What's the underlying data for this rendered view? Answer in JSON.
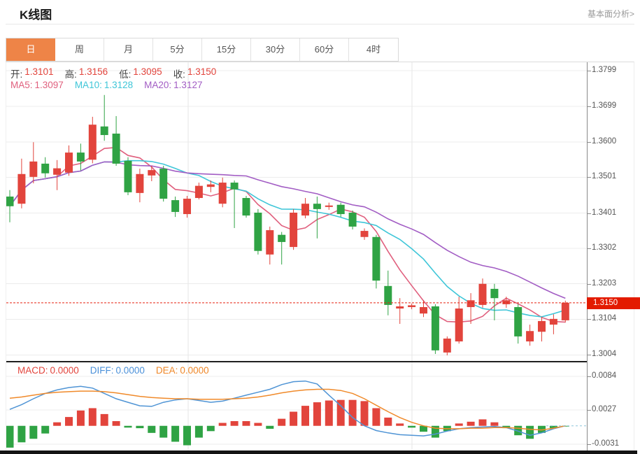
{
  "header": {
    "title": "K线图",
    "link": "基本面分析>"
  },
  "tabs": {
    "items": [
      "日",
      "周",
      "月",
      "5分",
      "15分",
      "30分",
      "60分",
      "4时"
    ],
    "active_index": 0,
    "active_bg": "#ee8447"
  },
  "ohlc_legend": [
    {
      "label": "开:",
      "value": "1.3101"
    },
    {
      "label": "高:",
      "value": "1.3156"
    },
    {
      "label": "低:",
      "value": "1.3095"
    },
    {
      "label": "收:",
      "value": "1.3150"
    }
  ],
  "ma_legend": [
    {
      "label": "MA5:",
      "value": "1.3097",
      "color": "#e0607e"
    },
    {
      "label": "MA10:",
      "value": "1.3128",
      "color": "#3fc6d8"
    },
    {
      "label": "MA20:",
      "value": "1.3127",
      "color": "#a25dc4"
    }
  ],
  "macd_legend": [
    {
      "label": "MACD:",
      "value": "0.0000",
      "color": "#e2443c"
    },
    {
      "label": "DIFF:",
      "value": "0.0000",
      "color": "#4a90d9"
    },
    {
      "label": "DEA:",
      "value": "0.0000",
      "color": "#ef8829"
    }
  ],
  "price_axis": {
    "ticks": [
      "1.3799",
      "1.3699",
      "1.3600",
      "1.3501",
      "1.3401",
      "1.3302",
      "1.3203",
      "1.3104",
      "1.3004"
    ],
    "last_price": "1.3150"
  },
  "macd_axis": {
    "ticks": [
      "0.0084",
      "0.0027",
      "-0.0031"
    ]
  },
  "colors": {
    "up": "#e2443c",
    "down": "#2fa344",
    "value_red": "#e2443c",
    "last_price_line": "#e62310",
    "badge_bg": "#e31b00",
    "grid": "#ececec",
    "vgrid": "#e6e6e6",
    "diff_line": "#4f94d5",
    "dea_line": "#f08a2a",
    "zero_dash": "#8ec6dc"
  },
  "chart_data": {
    "type": "candlestick+macd",
    "title": "K线图",
    "price_ticks": [
      1.3799,
      1.3699,
      1.36,
      1.3501,
      1.3401,
      1.3302,
      1.3203,
      1.3104,
      1.3004
    ],
    "last_price": 1.315,
    "ma_periods": [
      5,
      10,
      20
    ],
    "candles_ohlc": [
      [
        1.3447,
        1.3465,
        1.3375,
        1.342
      ],
      [
        1.3427,
        1.3553,
        1.3414,
        1.351
      ],
      [
        1.3502,
        1.3599,
        1.3484,
        1.3545
      ],
      [
        1.3539,
        1.3557,
        1.35,
        1.3512
      ],
      [
        1.3508,
        1.3549,
        1.3465,
        1.3526
      ],
      [
        1.3514,
        1.359,
        1.3505,
        1.357
      ],
      [
        1.357,
        1.3595,
        1.352,
        1.3545
      ],
      [
        1.355,
        1.367,
        1.354,
        1.3648
      ],
      [
        1.3643,
        1.3731,
        1.3603,
        1.3619
      ],
      [
        1.3623,
        1.3672,
        1.3533,
        1.3539
      ],
      [
        1.3547,
        1.3557,
        1.3451,
        1.3459
      ],
      [
        1.3457,
        1.3525,
        1.3431,
        1.351
      ],
      [
        1.3506,
        1.3533,
        1.349,
        1.3521
      ],
      [
        1.3525,
        1.3533,
        1.3433,
        1.3441
      ],
      [
        1.3437,
        1.3447,
        1.339,
        1.3404
      ],
      [
        1.3398,
        1.3449,
        1.3388,
        1.3441
      ],
      [
        1.3443,
        1.3486,
        1.3439,
        1.3477
      ],
      [
        1.3474,
        1.3492,
        1.3459,
        1.3481
      ],
      [
        1.3427,
        1.35,
        1.3417,
        1.3486
      ],
      [
        1.3486,
        1.3492,
        1.3359,
        1.3467
      ],
      [
        1.3443,
        1.3449,
        1.3388,
        1.3394
      ],
      [
        1.3402,
        1.3412,
        1.3285,
        1.3295
      ],
      [
        1.3285,
        1.3363,
        1.3257,
        1.3353
      ],
      [
        1.334,
        1.3348,
        1.3257,
        1.332
      ],
      [
        1.3306,
        1.3412,
        1.3298,
        1.3402
      ],
      [
        1.3394,
        1.3443,
        1.3386,
        1.3427
      ],
      [
        1.3427,
        1.3447,
        1.333,
        1.3412
      ],
      [
        1.3418,
        1.343,
        1.341,
        1.3422
      ],
      [
        1.3424,
        1.343,
        1.339,
        1.3398
      ],
      [
        1.3402,
        1.3408,
        1.3355,
        1.3363
      ],
      [
        1.3334,
        1.3358,
        1.3326,
        1.3351
      ],
      [
        1.3334,
        1.334,
        1.319,
        1.3212
      ],
      [
        1.3197,
        1.324,
        1.3115,
        1.3144
      ],
      [
        1.3134,
        1.3163,
        1.3091,
        1.314
      ],
      [
        1.3138,
        1.3148,
        1.3132,
        1.3143
      ],
      [
        1.312,
        1.3157,
        1.311,
        1.3138
      ],
      [
        1.314,
        1.3146,
        1.3007,
        1.3017
      ],
      [
        1.3011,
        1.3056,
        1.3003,
        1.305
      ],
      [
        1.3042,
        1.3167,
        1.3036,
        1.3134
      ],
      [
        1.3138,
        1.3177,
        1.3091,
        1.3157
      ],
      [
        1.3144,
        1.3218,
        1.3136,
        1.3203
      ],
      [
        1.3189,
        1.3203,
        1.3101,
        1.3163
      ],
      [
        1.3146,
        1.3167,
        1.3136,
        1.3157
      ],
      [
        1.3138,
        1.3146,
        1.3036,
        1.3056
      ],
      [
        1.3042,
        1.3089,
        1.303,
        1.3071
      ],
      [
        1.3069,
        1.3111,
        1.3042,
        1.3099
      ],
      [
        1.3089,
        1.3118,
        1.3062,
        1.3105
      ],
      [
        1.3101,
        1.3156,
        1.3095,
        1.315
      ]
    ],
    "macd": {
      "ticks": [
        0.0084,
        0.0027,
        -0.0031
      ],
      "hist": [
        -0.0037,
        -0.0028,
        -0.0022,
        -0.0013,
        0.0006,
        0.0015,
        0.0026,
        0.003,
        0.002,
        0.0008,
        -0.0003,
        -0.0004,
        -0.0012,
        -0.002,
        -0.0027,
        -0.0033,
        -0.002,
        -0.0009,
        0.0005,
        0.0008,
        0.0008,
        0.0005,
        -0.0005,
        0.0012,
        0.0024,
        0.0034,
        0.004,
        0.0043,
        0.0044,
        0.0044,
        0.0042,
        0.003,
        0.0014,
        0.0004,
        -0.0003,
        -0.001,
        -0.002,
        -0.0009,
        0.0004,
        0.0007,
        0.0011,
        0.0006,
        -0.0004,
        -0.0016,
        -0.0022,
        -0.0012,
        -0.0004,
        -0.0001
      ],
      "diff": [
        0.0028,
        0.0036,
        0.0046,
        0.0055,
        0.0061,
        0.0065,
        0.0067,
        0.0064,
        0.0055,
        0.0046,
        0.004,
        0.0034,
        0.0033,
        0.004,
        0.0044,
        0.0046,
        0.0043,
        0.004,
        0.0042,
        0.0047,
        0.0052,
        0.0057,
        0.0062,
        0.007,
        0.0075,
        0.0076,
        0.0071,
        0.0052,
        0.0034,
        0.0014,
        0.0,
        -0.0008,
        -0.0012,
        -0.0015,
        -0.0016,
        -0.0017,
        -0.0014,
        -0.0009,
        -0.0005,
        -0.0003,
        -0.0002,
        -0.0001,
        -0.0003,
        -0.0009,
        -0.0016,
        -0.0012,
        -0.0005,
        0.0
      ],
      "dea": [
        0.0047,
        0.0049,
        0.0052,
        0.0055,
        0.0057,
        0.0058,
        0.0059,
        0.0059,
        0.0058,
        0.0056,
        0.0053,
        0.005,
        0.0048,
        0.0047,
        0.0046,
        0.0046,
        0.0045,
        0.0045,
        0.0045,
        0.0046,
        0.0047,
        0.0049,
        0.0052,
        0.0056,
        0.0059,
        0.0061,
        0.0062,
        0.0062,
        0.006,
        0.0055,
        0.0046,
        0.0035,
        0.0024,
        0.0014,
        0.0006,
        0.0,
        -0.0004,
        -0.0005,
        -0.0005,
        -0.0004,
        -0.0004,
        -0.0003,
        -0.0003,
        -0.0004,
        -0.0006,
        -0.0007,
        -0.0004,
        0.0
      ]
    }
  }
}
